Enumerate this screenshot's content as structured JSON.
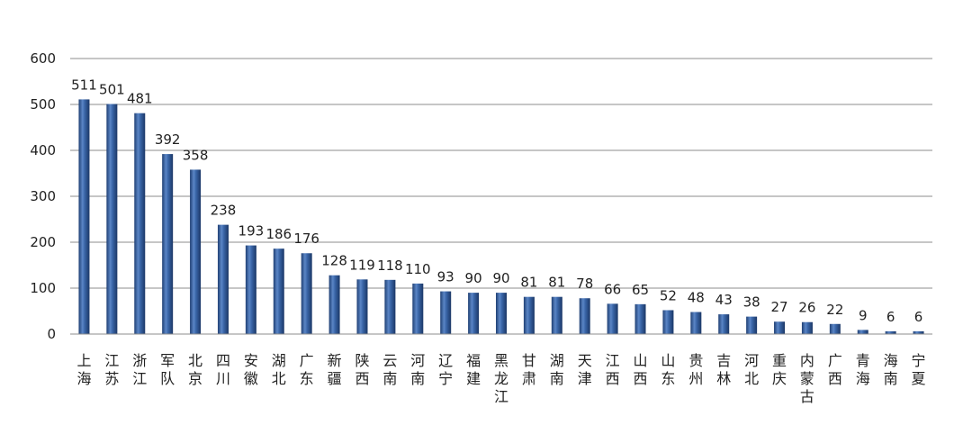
{
  "chart_data": {
    "type": "bar",
    "categories": [
      "上海",
      "江苏",
      "浙江",
      "军队",
      "北京",
      "四川",
      "安徽",
      "湖北",
      "广东",
      "新疆",
      "陕西",
      "云南",
      "河南",
      "辽宁",
      "福建",
      "黑龙江",
      "甘肃",
      "湖南",
      "天津",
      "江西",
      "山西",
      "山东",
      "贵州",
      "吉林",
      "河北",
      "重庆",
      "内蒙古",
      "广西",
      "青海",
      "海南",
      "宁夏"
    ],
    "values": [
      511,
      501,
      481,
      392,
      358,
      238,
      193,
      186,
      176,
      128,
      119,
      118,
      110,
      93,
      90,
      90,
      81,
      81,
      78,
      66,
      65,
      52,
      48,
      43,
      38,
      27,
      26,
      22,
      9,
      6,
      6
    ],
    "yticks": [
      0,
      100,
      200,
      300,
      400,
      500,
      600
    ],
    "ylim": [
      0,
      600
    ],
    "grid": true,
    "legend": "none",
    "title": "",
    "xlabel": "",
    "ylabel": "",
    "bar_color": "#3a66a8"
  }
}
